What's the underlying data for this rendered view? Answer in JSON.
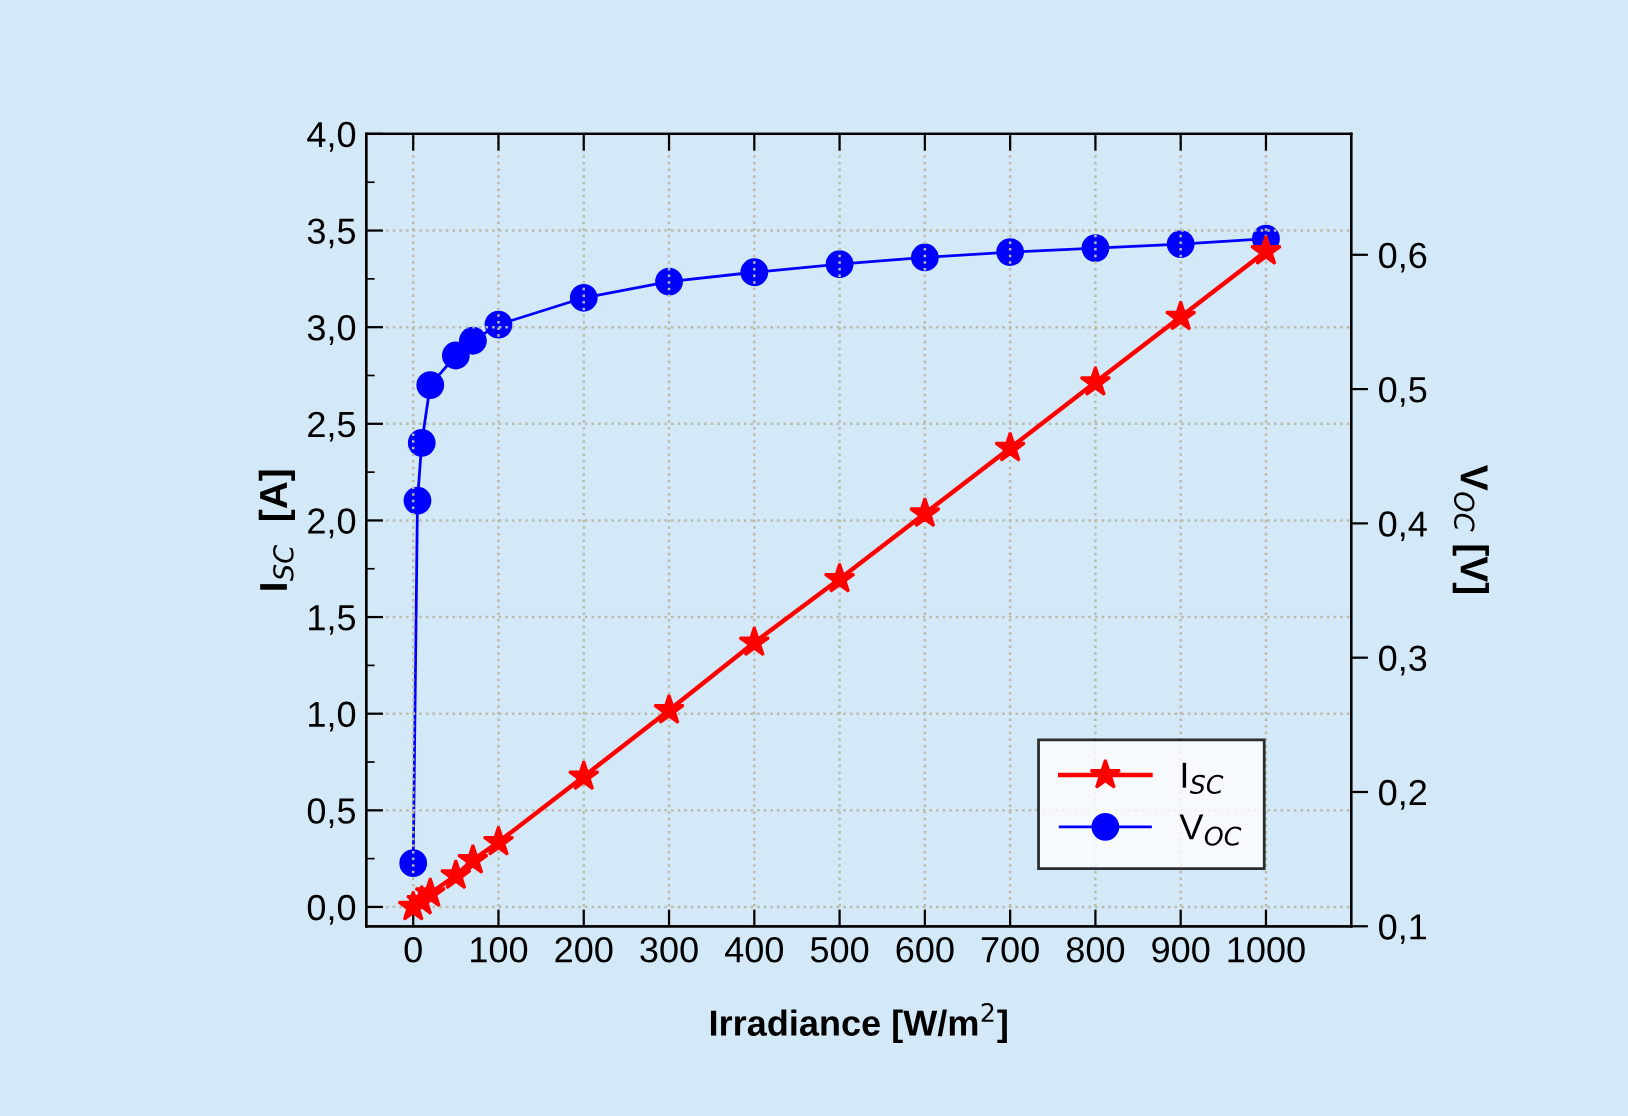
{
  "chart_data": {
    "type": "line",
    "xlabel": "Irradiance [W/m$^{2}$]",
    "ylabel": "I$_{SC}$  [A]",
    "y2label": "V$_{OC}$ [V]",
    "x": [
      0,
      5,
      10,
      20,
      50,
      70,
      100,
      200,
      300,
      400,
      500,
      600,
      700,
      800,
      900,
      1000
    ],
    "series": [
      {
        "name": "I$_{SC}$",
        "color": "#ff0000",
        "marker": "star",
        "values": [
          0,
          null,
          0.03,
          0.07,
          0.163,
          0.242,
          0.336,
          0.675,
          1.018,
          1.368,
          1.697,
          2.036,
          2.375,
          2.715,
          3.054,
          3.393
        ]
      },
      {
        "name": "V$_{OC}$",
        "color": "#0000ff",
        "marker": "circle",
        "axis": "y2",
        "values": [
          0.147,
          0.417,
          0.46,
          0.503,
          0.525,
          0.536,
          0.548,
          0.568,
          0.58,
          0.587,
          0.593,
          0.598,
          0.602,
          0.605,
          0.608,
          0.612
        ]
      }
    ],
    "xlim": [
      -55,
      1100
    ],
    "xticks": [
      0,
      100,
      200,
      300,
      400,
      500,
      600,
      700,
      800,
      900,
      1000
    ],
    "ylim": [
      -0.1,
      4.0
    ],
    "yticks": [
      {
        "value": 0,
        "label": "0,0"
      },
      {
        "value": 0.5,
        "label": "0,5"
      },
      {
        "value": 1,
        "label": "1,0"
      },
      {
        "value": 1.5,
        "label": "1,5"
      },
      {
        "value": 2,
        "label": "2,0"
      },
      {
        "value": 2.5,
        "label": "2,5"
      },
      {
        "value": 3,
        "label": "3,0"
      },
      {
        "value": 3.5,
        "label": "3,5"
      },
      {
        "value": 4,
        "label": "4,0"
      }
    ],
    "y2lim": [
      0.1,
      0.69
    ],
    "y2ticks": [
      {
        "value": 0.1,
        "label": "0,1"
      },
      {
        "value": 0.2,
        "label": "0,2"
      },
      {
        "value": 0.3,
        "label": "0,3"
      },
      {
        "value": 0.4,
        "label": "0,4"
      },
      {
        "value": 0.5,
        "label": "0,5"
      },
      {
        "value": 0.6,
        "label": "0,6"
      }
    ],
    "grid": true,
    "legend": "bottom right",
    "line_style": "solid"
  }
}
